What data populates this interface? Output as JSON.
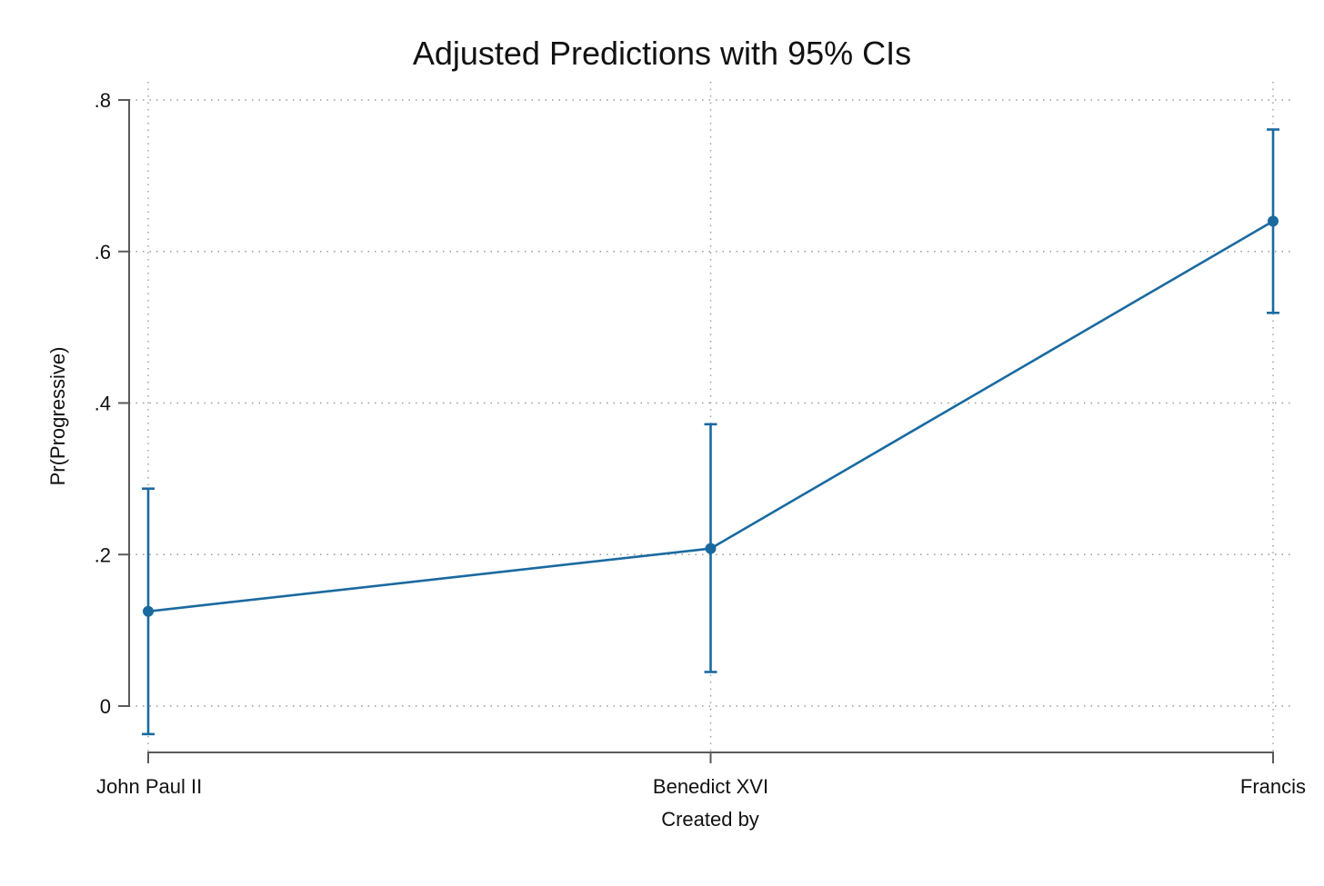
{
  "chart_data": {
    "type": "line",
    "title": "Adjusted Predictions with 95% CIs",
    "xlabel": "Created by",
    "ylabel": "Pr(Progressive)",
    "categories": [
      "John Paul II",
      "Benedict XVI",
      "Francis"
    ],
    "series": [
      {
        "values": [
          0.125,
          0.208,
          0.64
        ],
        "ci_lower": [
          -0.037,
          0.045,
          0.519
        ],
        "ci_upper": [
          0.287,
          0.372,
          0.761
        ]
      }
    ],
    "yticks": [
      0,
      0.2,
      0.4,
      0.6,
      0.8
    ],
    "ytick_labels": [
      "0",
      ".2",
      ".4",
      ".6",
      ".8"
    ],
    "ylim": [
      -0.045,
      0.8
    ],
    "grid": true,
    "legend": "none",
    "color": "#1a6aa0"
  }
}
